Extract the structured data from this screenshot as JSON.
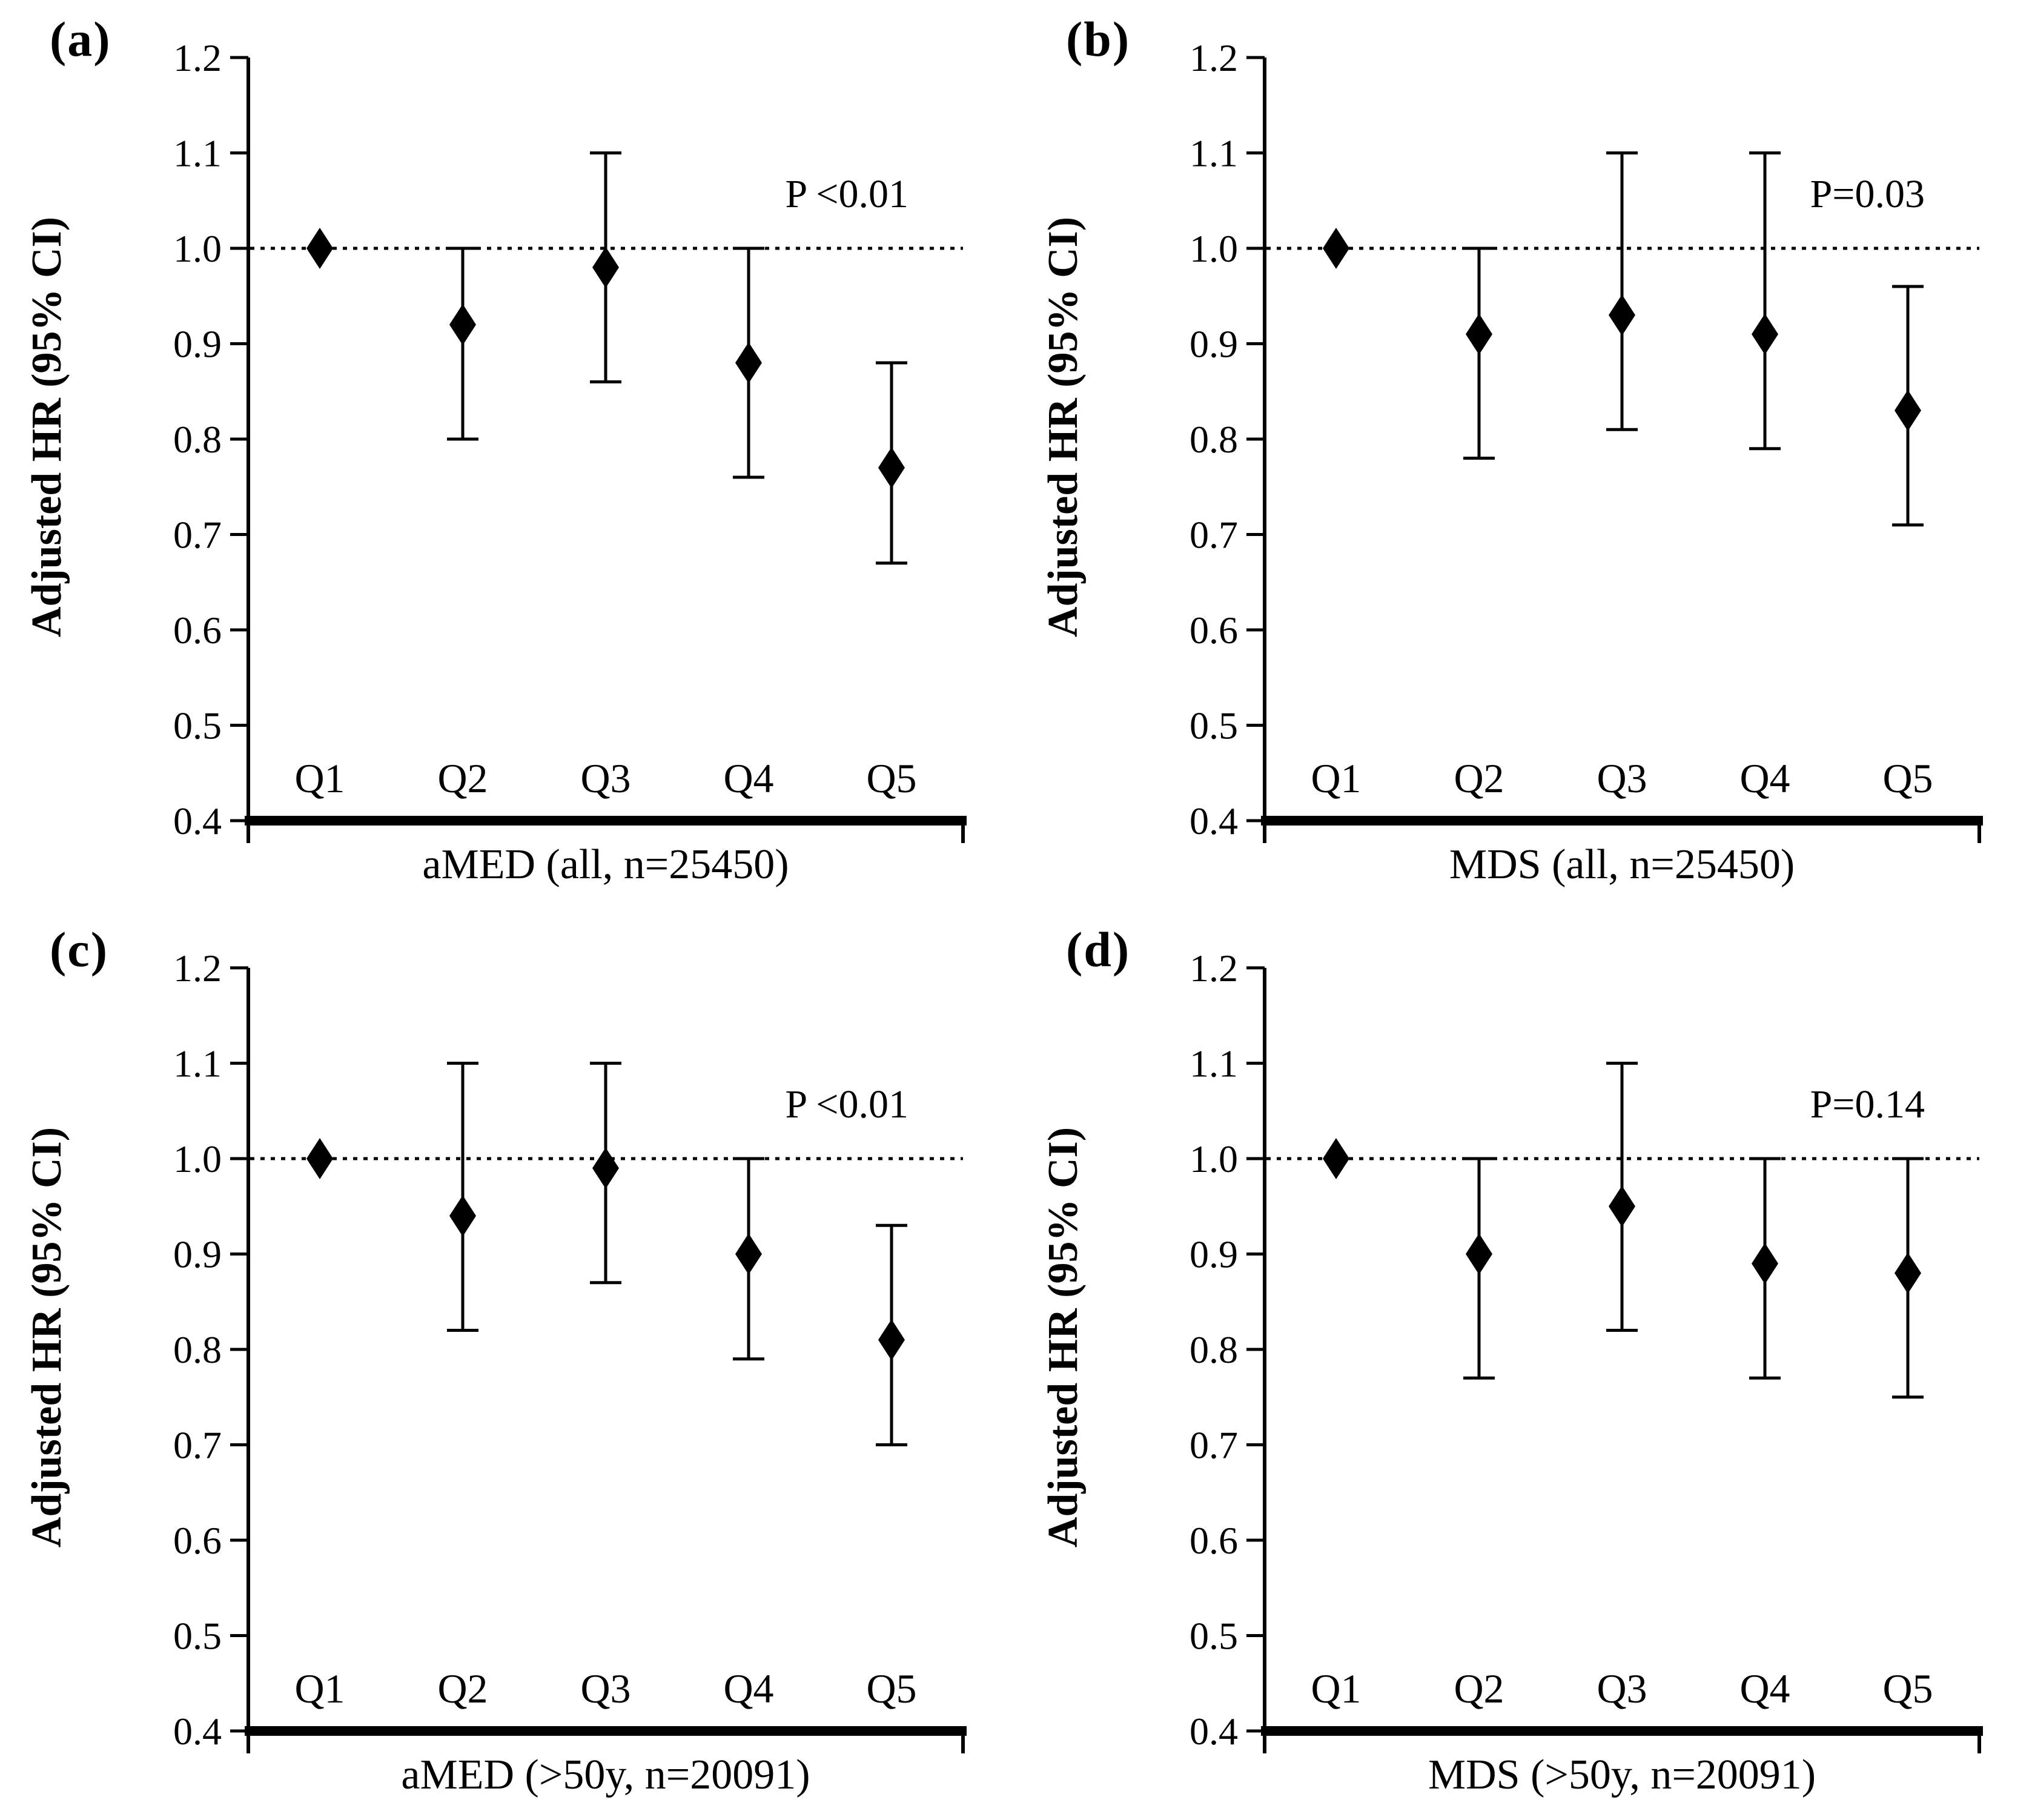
{
  "page": {
    "background_color": "#ffffff",
    "foreground_color": "#000000"
  },
  "chart_data": [
    {
      "type": "scatter",
      "tag": "(a)",
      "p_label": "P <0.01",
      "xlabel": "aMED (all, n=25450)",
      "ylabel": "Adjusted HR (95% CI)",
      "categories": [
        "Q1",
        "Q2",
        "Q3",
        "Q4",
        "Q5"
      ],
      "series": [
        {
          "name": "Adjusted HR",
          "values": [
            1.0,
            0.92,
            0.98,
            0.88,
            0.77
          ]
        },
        {
          "name": "CI lower",
          "values": [
            null,
            0.8,
            0.86,
            0.76,
            0.67
          ]
        },
        {
          "name": "CI upper",
          "values": [
            null,
            1.0,
            1.1,
            1.0,
            0.88
          ]
        }
      ],
      "ylim": [
        0.4,
        1.2
      ],
      "yticks": [
        "1.2",
        "1.1",
        "1.0",
        "0.9",
        "0.8",
        "0.7",
        "0.6",
        "0.5",
        "0.4"
      ],
      "ref_line": 1.0,
      "marker": "diamond",
      "grid": false,
      "legend": "none"
    },
    {
      "type": "scatter",
      "tag": "(b)",
      "p_label": "P=0.03",
      "xlabel": "MDS (all, n=25450)",
      "ylabel": "Adjusted HR (95% CI)",
      "categories": [
        "Q1",
        "Q2",
        "Q3",
        "Q4",
        "Q5"
      ],
      "series": [
        {
          "name": "Adjusted HR",
          "values": [
            1.0,
            0.91,
            0.93,
            0.91,
            0.83
          ]
        },
        {
          "name": "CI lower",
          "values": [
            null,
            0.78,
            0.81,
            0.79,
            0.71
          ]
        },
        {
          "name": "CI upper",
          "values": [
            null,
            1.0,
            1.1,
            1.1,
            0.96
          ]
        }
      ],
      "ylim": [
        0.4,
        1.2
      ],
      "yticks": [
        "1.2",
        "1.1",
        "1.0",
        "0.9",
        "0.8",
        "0.7",
        "0.6",
        "0.5",
        "0.4"
      ],
      "ref_line": 1.0,
      "marker": "diamond",
      "grid": false,
      "legend": "none"
    },
    {
      "type": "scatter",
      "tag": "(c)",
      "p_label": "P <0.01",
      "xlabel": "aMED (>50y, n=20091)",
      "ylabel": "Adjusted HR (95% CI)",
      "categories": [
        "Q1",
        "Q2",
        "Q3",
        "Q4",
        "Q5"
      ],
      "series": [
        {
          "name": "Adjusted HR",
          "values": [
            1.0,
            0.94,
            0.99,
            0.9,
            0.81
          ]
        },
        {
          "name": "CI lower",
          "values": [
            null,
            0.82,
            0.87,
            0.79,
            0.7
          ]
        },
        {
          "name": "CI upper",
          "values": [
            null,
            1.1,
            1.1,
            1.0,
            0.93
          ]
        }
      ],
      "ylim": [
        0.4,
        1.2
      ],
      "yticks": [
        "1.2",
        "1.1",
        "1.0",
        "0.9",
        "0.8",
        "0.7",
        "0.6",
        "0.5",
        "0.4"
      ],
      "ref_line": 1.0,
      "marker": "diamond",
      "grid": false,
      "legend": "none"
    },
    {
      "type": "scatter",
      "tag": "(d)",
      "p_label": "P=0.14",
      "xlabel": "MDS (>50y, n=20091)",
      "ylabel": "Adjusted HR (95% CI)",
      "categories": [
        "Q1",
        "Q2",
        "Q3",
        "Q4",
        "Q5"
      ],
      "series": [
        {
          "name": "Adjusted HR",
          "values": [
            1.0,
            0.9,
            0.95,
            0.89,
            0.88
          ]
        },
        {
          "name": "CI lower",
          "values": [
            null,
            0.77,
            0.82,
            0.77,
            0.75
          ]
        },
        {
          "name": "CI upper",
          "values": [
            null,
            1.0,
            1.1,
            1.0,
            1.0
          ]
        }
      ],
      "ylim": [
        0.4,
        1.2
      ],
      "yticks": [
        "1.2",
        "1.1",
        "1.0",
        "0.9",
        "0.8",
        "0.7",
        "0.6",
        "0.5",
        "0.4"
      ],
      "ref_line": 1.0,
      "marker": "diamond",
      "grid": false,
      "legend": "none"
    }
  ]
}
